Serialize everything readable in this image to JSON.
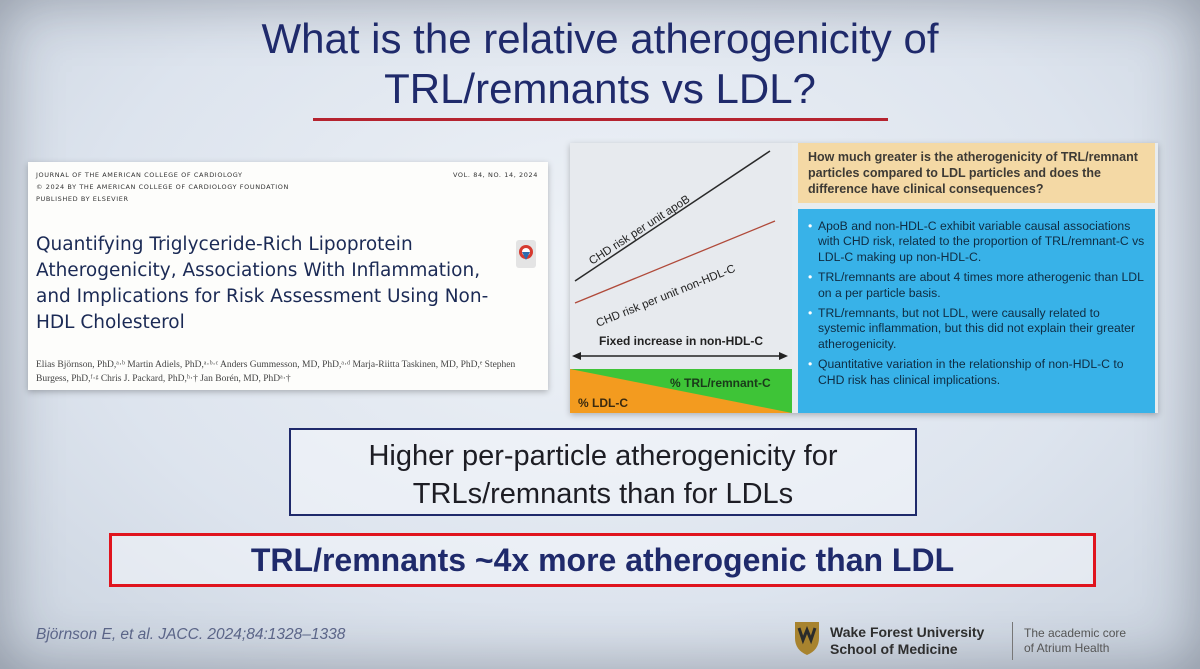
{
  "slide": {
    "title": "What is the relative atherogenicity of TRL/remnants vs LDL?",
    "higher_statement": "Higher per-particle atherogenicity for TRLs/remnants than for LDLs",
    "conclusion": "TRL/remnants ~4x more atherogenic than LDL",
    "citation": "Björnson E, et al. JACC. 2024;84:1328–1338"
  },
  "journal": {
    "name": "JOURNAL OF THE AMERICAN COLLEGE OF CARDIOLOGY",
    "copyright": "© 2024 BY THE AMERICAN COLLEGE OF CARDIOLOGY FOUNDATION",
    "publisher": "PUBLISHED BY ELSEVIER",
    "volume": "VOL. 84, NO. 14, 2024",
    "article_title": "Quantifying Triglyceride-Rich Lipoprotein Atherogenicity, Associations With Inflammation, and Implications for Risk Assessment Using Non-HDL Cholesterol",
    "authors": "Elias Björnson, PhD,ᵃ·ᵇ Martin Adiels, PhD,ᵃ·ᵇ·ᶜ Anders Gummesson, MD, PhD,ᵃ·ᵈ Marja-Riitta Taskinen, MD, PhD,ᵉ Stephen Burgess, PhD,ᶠ·ᵍ Chris J. Packard, PhD,ʰ·† Jan Borén, MD, PhDᵃ·†"
  },
  "illustration": {
    "apob_label": "CHD risk per unit apoB",
    "nonhdl_label": "CHD risk per unit non-HDL-C",
    "fixed_increase": "Fixed increase in non-HDL-C",
    "trl_label": "% TRL/remnant-C",
    "ldl_label": "% LDL-C",
    "question": "How much greater is the atherogenicity of TRL/remnant particles compared to LDL particles and does the difference have clinical consequences?",
    "findings": [
      "ApoB and non-HDL-C exhibit variable causal associations with CHD risk, related to the proportion of TRL/remnant-C vs LDL-C making up non-HDL-C.",
      "TRL/remnants are about 4 times more atherogenic than LDL on a per particle basis.",
      "TRL/remnants, but not LDL, were causally related to systemic inflammation, but this did not explain their greater atherogenicity.",
      "Quantitative variation in the relationship of non-HDL-C to CHD risk has clinical implications."
    ]
  },
  "footer": {
    "university_line1": "Wake Forest University",
    "university_line2": "School of Medicine",
    "tagline_line1": "The academic core",
    "tagline_line2": "of Atrium Health"
  },
  "colors": {
    "title": "#1f2a6b",
    "underline": "#b5232f",
    "conclusion_border": "#e0141e",
    "question_bg": "#f4d9a5",
    "findings_bg": "#38b2e8",
    "trl_green": "#3ec437",
    "ldl_orange": "#f39b1f"
  }
}
